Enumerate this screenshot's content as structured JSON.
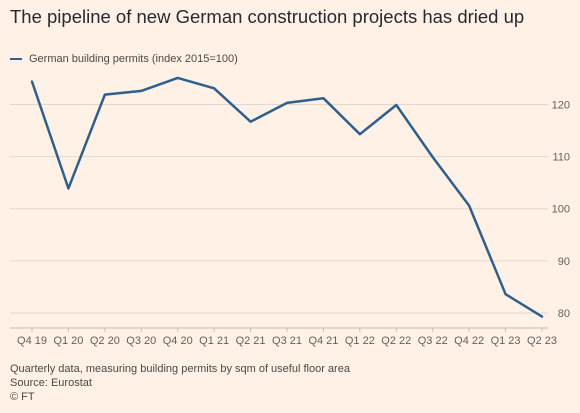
{
  "title": "The pipeline of new German construction projects has dried up",
  "footnote": "Quarterly data, measuring building permits by sqm of useful floor area",
  "source": "Source: Eurostat",
  "credit": "© FT",
  "colors": {
    "line": "#2d5f8f",
    "grid": "#e2d8cf",
    "background": "#fff1e5"
  },
  "chart_data": {
    "type": "line",
    "categories": [
      "Q4 19",
      "Q1 20",
      "Q2 20",
      "Q3 20",
      "Q4 20",
      "Q1 21",
      "Q2 21",
      "Q3 21",
      "Q4 21",
      "Q1 22",
      "Q2 22",
      "Q3 22",
      "Q4 22",
      "Q1 23",
      "Q2 23"
    ],
    "series": [
      {
        "name": "German building permits (index 2015=100)",
        "values": [
          124.4,
          103.9,
          121.9,
          122.6,
          125.1,
          123.1,
          116.7,
          120.3,
          121.2,
          114.3,
          119.9,
          109.9,
          100.6,
          83.6,
          79.3
        ]
      }
    ],
    "yticks": [
      80,
      90,
      100,
      110,
      120
    ],
    "ylim": [
      77.5,
      127
    ],
    "grid": true,
    "legend_position": "top-left"
  }
}
